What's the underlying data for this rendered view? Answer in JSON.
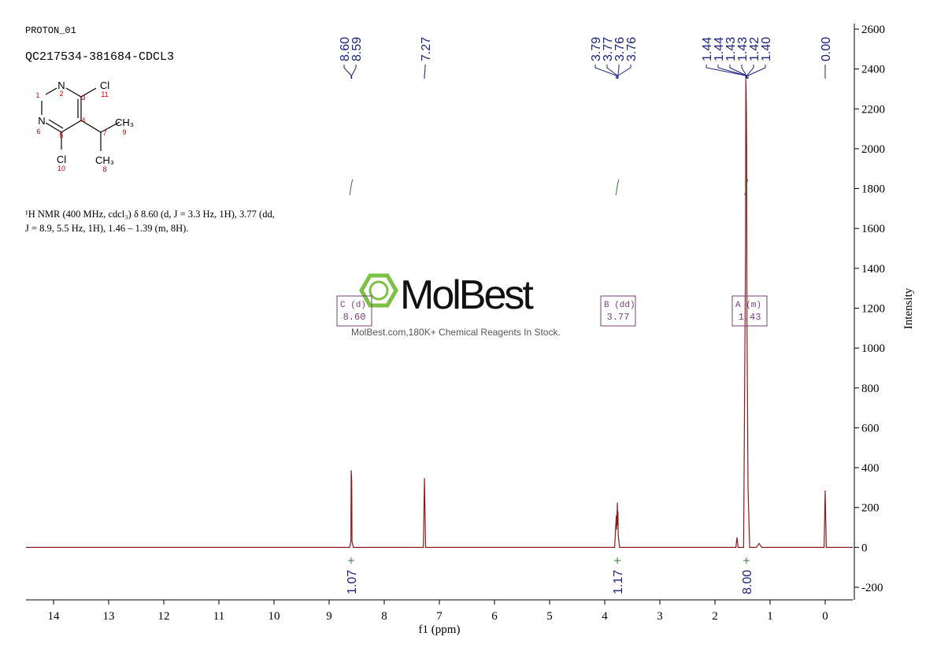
{
  "chart_data": {
    "type": "line",
    "experiment": "PROTON_01",
    "sample": "QC217534-381684-CDCL3",
    "structure": {
      "atoms": [
        "N",
        "N",
        "Cl",
        "Cl",
        "CH₃",
        "CH₃"
      ],
      "numbers": [
        "1",
        "2",
        "3",
        "4",
        "5",
        "6",
        "7",
        "8",
        "9",
        "10",
        "11"
      ]
    },
    "description": [
      "¹H NMR (400 MHz, cdcl₃) δ 8.60 (d, J = 3.3 Hz, 1H), 3.77 (dd,",
      "J = 8.9, 5.5 Hz, 1H), 1.46 – 1.39 (m, 8H)."
    ],
    "watermark": {
      "brand": "MolBest",
      "tagline": "MolBest.com,180K+ Chemical Reagents In Stock."
    },
    "x_label": "f1 (ppm)",
    "y_label": "Intensity",
    "xlim": [
      14.5,
      -0.5
    ],
    "xticks": [
      14,
      13,
      12,
      11,
      10,
      9,
      8,
      7,
      6,
      5,
      4,
      3,
      2,
      1,
      0
    ],
    "ylim": [
      -200,
      2600
    ],
    "yticks": [
      -200,
      0,
      200,
      400,
      600,
      800,
      1000,
      1200,
      1400,
      1600,
      1800,
      2000,
      2200,
      2400,
      2600
    ],
    "series": [
      {
        "name": "spectrum",
        "color": "#8b1a1a",
        "x": [
          14.5,
          8.63,
          8.605,
          8.6,
          8.59,
          8.585,
          8.56,
          7.29,
          7.27,
          7.25,
          3.82,
          3.79,
          3.785,
          3.77,
          3.765,
          3.76,
          3.755,
          3.73,
          1.62,
          1.6,
          1.58,
          1.48,
          1.445,
          1.44,
          1.435,
          1.43,
          1.425,
          1.42,
          1.4,
          1.37,
          1.25,
          1.2,
          1.15,
          0.02,
          0,
          -0.02,
          -0.5
        ],
        "values": [
          0,
          0,
          30,
          387,
          330,
          30,
          0,
          0,
          348,
          0,
          0,
          160,
          90,
          225,
          110,
          180,
          60,
          0,
          0,
          50,
          0,
          0,
          1500,
          2350,
          2300,
          2200,
          2000,
          1200,
          300,
          0,
          0,
          20,
          0,
          0,
          285,
          0,
          0
        ]
      }
    ],
    "peak_labels": [
      {
        "value": 8.6,
        "label": "8.60"
      },
      8.59,
      7.27,
      3.79,
      3.77,
      3.76,
      3.76,
      1.44,
      1.44,
      1.43,
      1.43,
      1.42,
      {
        "value": 1.4,
        "label": "1.40"
      },
      {
        "value": 0,
        "label": "0.00"
      }
    ],
    "integral_positions": [
      8.6,
      3.77,
      1.43
    ],
    "integral_values": [
      1.07,
      1.17,
      {
        "value": 8,
        "label": "8.00"
      }
    ],
    "multiplets": [
      {
        "name": "C (d)",
        "shift": "8.60"
      },
      {
        "name": "B (dd)",
        "shift": "3.77"
      },
      {
        "name": "A (m)",
        "shift": "1.43"
      }
    ]
  }
}
